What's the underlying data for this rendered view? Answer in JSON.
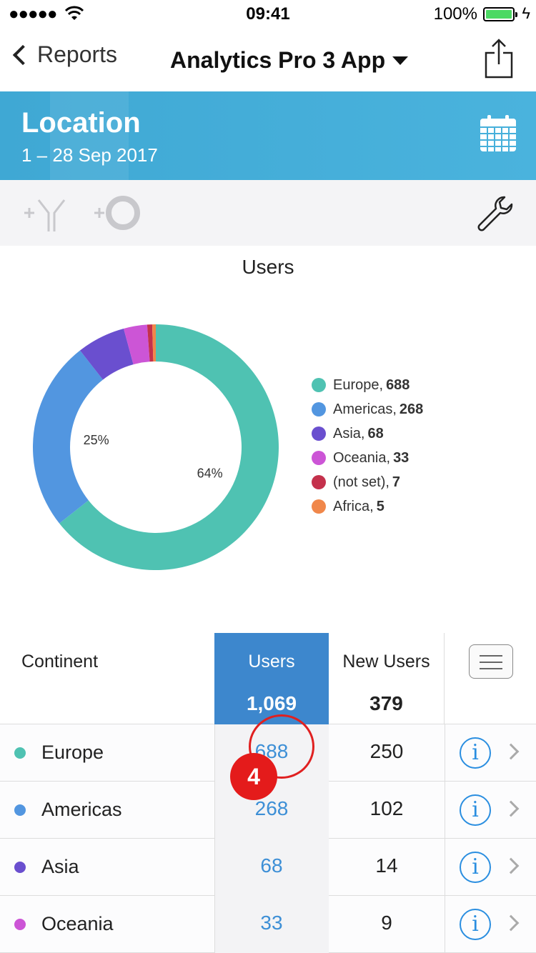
{
  "status_bar": {
    "signal": "●●●●●",
    "time": "09:41",
    "battery": "100%"
  },
  "nav": {
    "back_label": "Reports",
    "title": "Analytics Pro 3 App"
  },
  "header": {
    "title": "Location",
    "date_range": "1 – 28 Sep 2017",
    "accent_color": "#42acd8"
  },
  "chart_data": {
    "type": "pie",
    "title": "Users",
    "categories": [
      "Europe",
      "Americas",
      "Asia",
      "Oceania",
      "(not set)",
      "Africa"
    ],
    "values": [
      688,
      268,
      68,
      33,
      7,
      5
    ],
    "colors": [
      "#4fc2b2",
      "#5296e0",
      "#6a4fcf",
      "#cc55d6",
      "#c4314c",
      "#f0874a"
    ],
    "slice_labels": [
      {
        "text": "64%",
        "slice": "Europe"
      },
      {
        "text": "25%",
        "slice": "Americas"
      }
    ],
    "legend_placement": "right",
    "donut": true
  },
  "table": {
    "headers": {
      "continent": "Continent",
      "users": "Users",
      "new_users": "New Users"
    },
    "totals": {
      "users": "1,069",
      "new_users": "379"
    },
    "rows": [
      {
        "name": "Europe",
        "users": "688",
        "new_users": "250",
        "color": "#4fc2b2"
      },
      {
        "name": "Americas",
        "users": "268",
        "new_users": "102",
        "color": "#5296e0"
      },
      {
        "name": "Asia",
        "users": "68",
        "new_users": "14",
        "color": "#6a4fcf"
      },
      {
        "name": "Oceania",
        "users": "33",
        "new_users": "9",
        "color": "#cc55d6"
      }
    ]
  },
  "annotation": {
    "step": "4"
  },
  "icons": {
    "share": "share-icon",
    "calendar": "calendar-icon",
    "compare": "add-comparison-icon",
    "segment": "add-segment-icon",
    "settings": "wrench-icon",
    "info": "info-icon",
    "menu": "menu-icon"
  }
}
